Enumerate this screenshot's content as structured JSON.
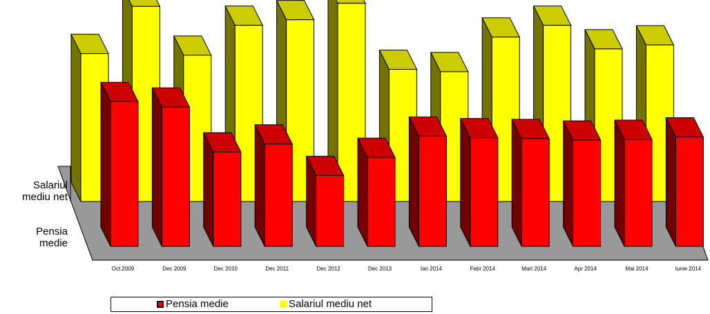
{
  "chart_data": {
    "type": "bar",
    "title": "",
    "xlabel": "",
    "ylabel": "",
    "categories": [
      "Oct.2009",
      "Dec 2009",
      "Dec 2010",
      "Dec 2011",
      "Dec 2012",
      "Dec 2013",
      "Ian 2014",
      "Febr 2014",
      "Mart 2014",
      "Apr 2014",
      "Mai 2014",
      "Iunie 2014"
    ],
    "series": [
      {
        "name": "Pensia medie",
        "color": "#ff0000",
        "values": [
          184,
          177,
          120,
          130,
          90,
          113,
          140,
          138,
          137,
          135,
          136,
          139
        ]
      },
      {
        "name": "Salariul mediu net",
        "color": "#ffff00",
        "values": [
          188,
          248,
          186,
          224,
          231,
          252,
          168,
          165,
          209,
          224,
          194,
          199
        ]
      }
    ],
    "ylim": [
      0,
      260
    ],
    "grid": false,
    "legend_position": "bottom"
  },
  "depth_labels": {
    "back": [
      "Salariul",
      "mediu net"
    ],
    "front": [
      "Pensia",
      "medie"
    ]
  }
}
